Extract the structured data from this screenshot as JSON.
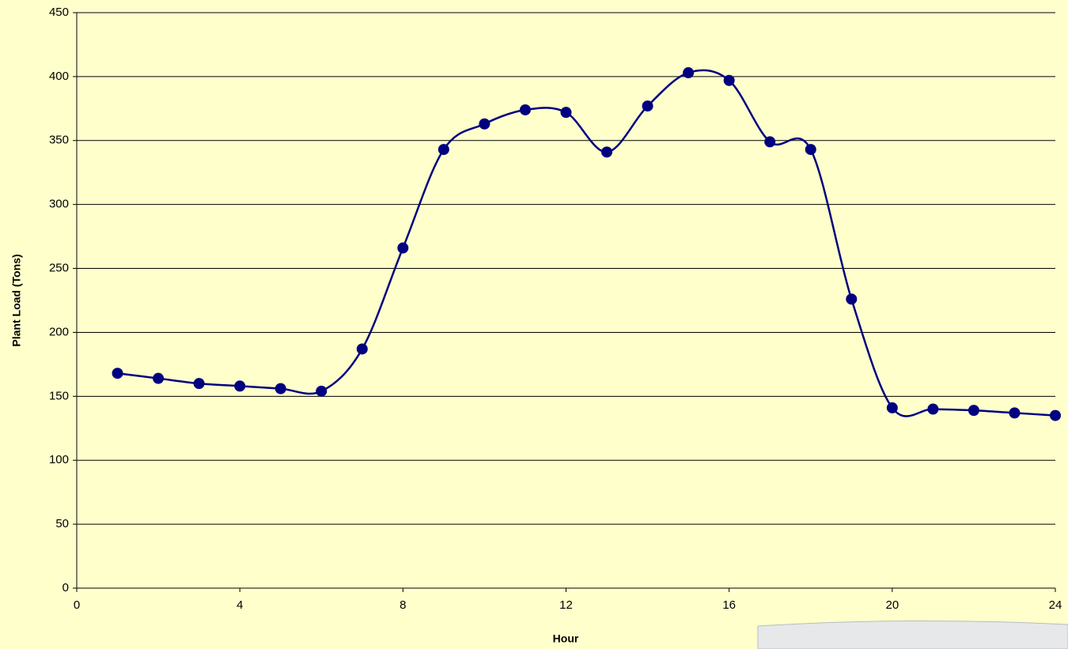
{
  "chart_data": {
    "type": "line",
    "x_label": "Hour",
    "y_label": "Plant Load (Tons)",
    "x": [
      1,
      2,
      3,
      4,
      5,
      6,
      7,
      8,
      9,
      10,
      11,
      12,
      13,
      14,
      15,
      16,
      17,
      18,
      19,
      20,
      21,
      22,
      23,
      24
    ],
    "series": [
      {
        "color": "#000080",
        "values": [
          168,
          164,
          160,
          158,
          156,
          154,
          187,
          266,
          343,
          363,
          374,
          372,
          341,
          377,
          403,
          397,
          349,
          343,
          226,
          141,
          140,
          139,
          137,
          135
        ]
      }
    ],
    "xlim": [
      0,
      24
    ],
    "xticks": [
      0,
      4,
      8,
      12,
      16,
      20,
      24
    ],
    "ylim": [
      0,
      450
    ],
    "yticks": [
      0,
      50,
      100,
      150,
      200,
      250,
      300,
      350,
      400,
      450
    ],
    "grid": true,
    "smooth": true
  }
}
